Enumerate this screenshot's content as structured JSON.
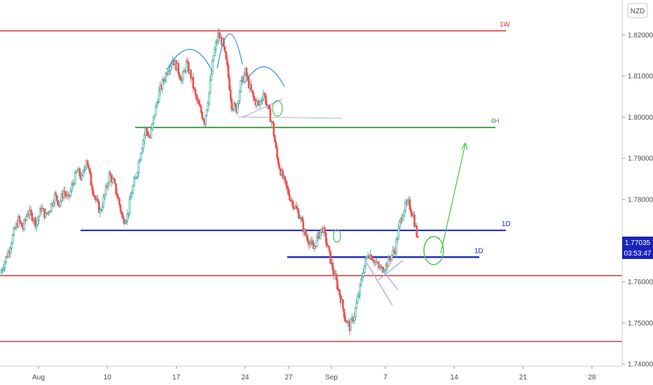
{
  "chart_data": {
    "type": "candlestick",
    "currency_label": "NZD",
    "x_ticks": [
      "Aug",
      "10",
      "17",
      "24",
      "27",
      "Sep",
      "7",
      "14",
      "21",
      "28"
    ],
    "y_ticks": [
      "1.74000",
      "1.75000",
      "1.76000",
      "1.77000",
      "1.78000",
      "1.79000",
      "1.80000",
      "1.81000",
      "1.82000"
    ],
    "ylim": [
      1.7395,
      1.8285
    ],
    "current_price": "1.77035",
    "countdown": "03:53:47",
    "levels": [
      {
        "label": "1W",
        "price": 1.821,
        "color": "#e53935",
        "width": 1.6
      },
      {
        "label": "4H",
        "price": 1.7975,
        "color": "#43a047",
        "width": 2
      },
      {
        "label": "1D",
        "price": 1.7725,
        "color": "#1a24b8",
        "width": 2
      },
      {
        "label": "1D",
        "price": 1.766,
        "color": "#1a24b8",
        "width": 2.4
      },
      {
        "label": "",
        "price": 1.7615,
        "color": "#e53935",
        "width": 1.6
      },
      {
        "label": "",
        "price": 1.7455,
        "color": "#e53935",
        "width": 1.6
      }
    ],
    "candle_path": [
      1.762,
      1.765,
      1.768,
      1.772,
      1.775,
      1.773,
      1.777,
      1.776,
      1.774,
      1.778,
      1.776,
      1.778,
      1.781,
      1.779,
      1.782,
      1.78,
      1.784,
      1.787,
      1.785,
      1.79,
      1.784,
      1.78,
      1.777,
      1.781,
      1.786,
      1.784,
      1.78,
      1.775,
      1.776,
      1.782,
      1.786,
      1.792,
      1.797,
      1.795,
      1.801,
      1.806,
      1.809,
      1.812,
      1.814,
      1.812,
      1.809,
      1.813,
      1.81,
      1.805,
      1.802,
      1.799,
      1.806,
      1.815,
      1.82,
      1.818,
      1.812,
      1.803,
      1.802,
      1.808,
      1.811,
      1.807,
      1.804,
      1.803,
      1.806,
      1.802,
      1.798,
      1.79,
      1.786,
      1.783,
      1.78,
      1.778,
      1.776,
      1.772,
      1.77,
      1.768,
      1.771,
      1.773,
      1.769,
      1.764,
      1.76,
      1.756,
      1.751,
      1.749,
      1.752,
      1.757,
      1.763,
      1.767,
      1.766,
      1.764,
      1.763,
      1.764,
      1.766,
      1.768,
      1.774,
      1.778,
      1.779,
      1.776,
      1.77
    ]
  }
}
